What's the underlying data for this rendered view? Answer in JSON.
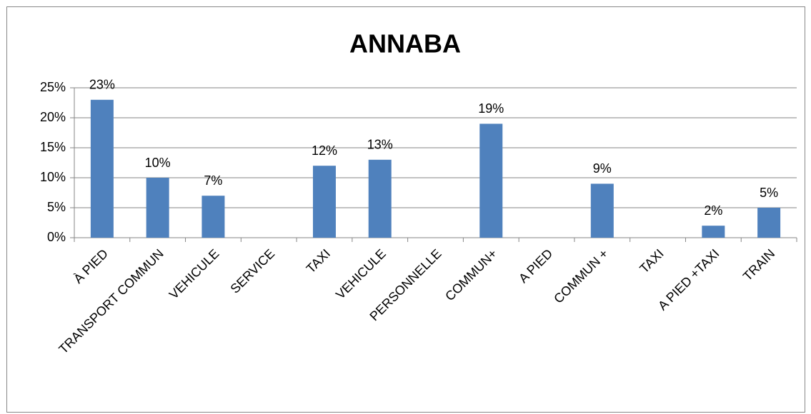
{
  "chart_data": {
    "type": "bar",
    "title": "ANNABA",
    "categories": [
      "À PIED",
      "TRANSPORT COMMUN",
      "VEHICULE",
      "SERVICE",
      "TAXI",
      "VEHICULE",
      "PERSONNELLE",
      "COMMUN+",
      "A PIED",
      "COMMUN +",
      "TAXI",
      "A PIED +TAXI",
      "TRAIN"
    ],
    "values": [
      23,
      10,
      7,
      null,
      12,
      13,
      null,
      19,
      null,
      9,
      null,
      2,
      5
    ],
    "value_labels": [
      "23%",
      "10%",
      "7%",
      null,
      "12%",
      "13%",
      null,
      "19%",
      null,
      "9%",
      null,
      "2%",
      "5%"
    ],
    "color": "#4f81bd",
    "ylim": [
      0,
      25
    ],
    "yticks": [
      {
        "value": 0,
        "label": "0%"
      },
      {
        "value": 5,
        "label": "5%"
      },
      {
        "value": 10,
        "label": "10%"
      },
      {
        "value": 15,
        "label": "15%"
      },
      {
        "value": 20,
        "label": "20%"
      },
      {
        "value": 25,
        "label": "25%"
      }
    ],
    "grid": true
  }
}
